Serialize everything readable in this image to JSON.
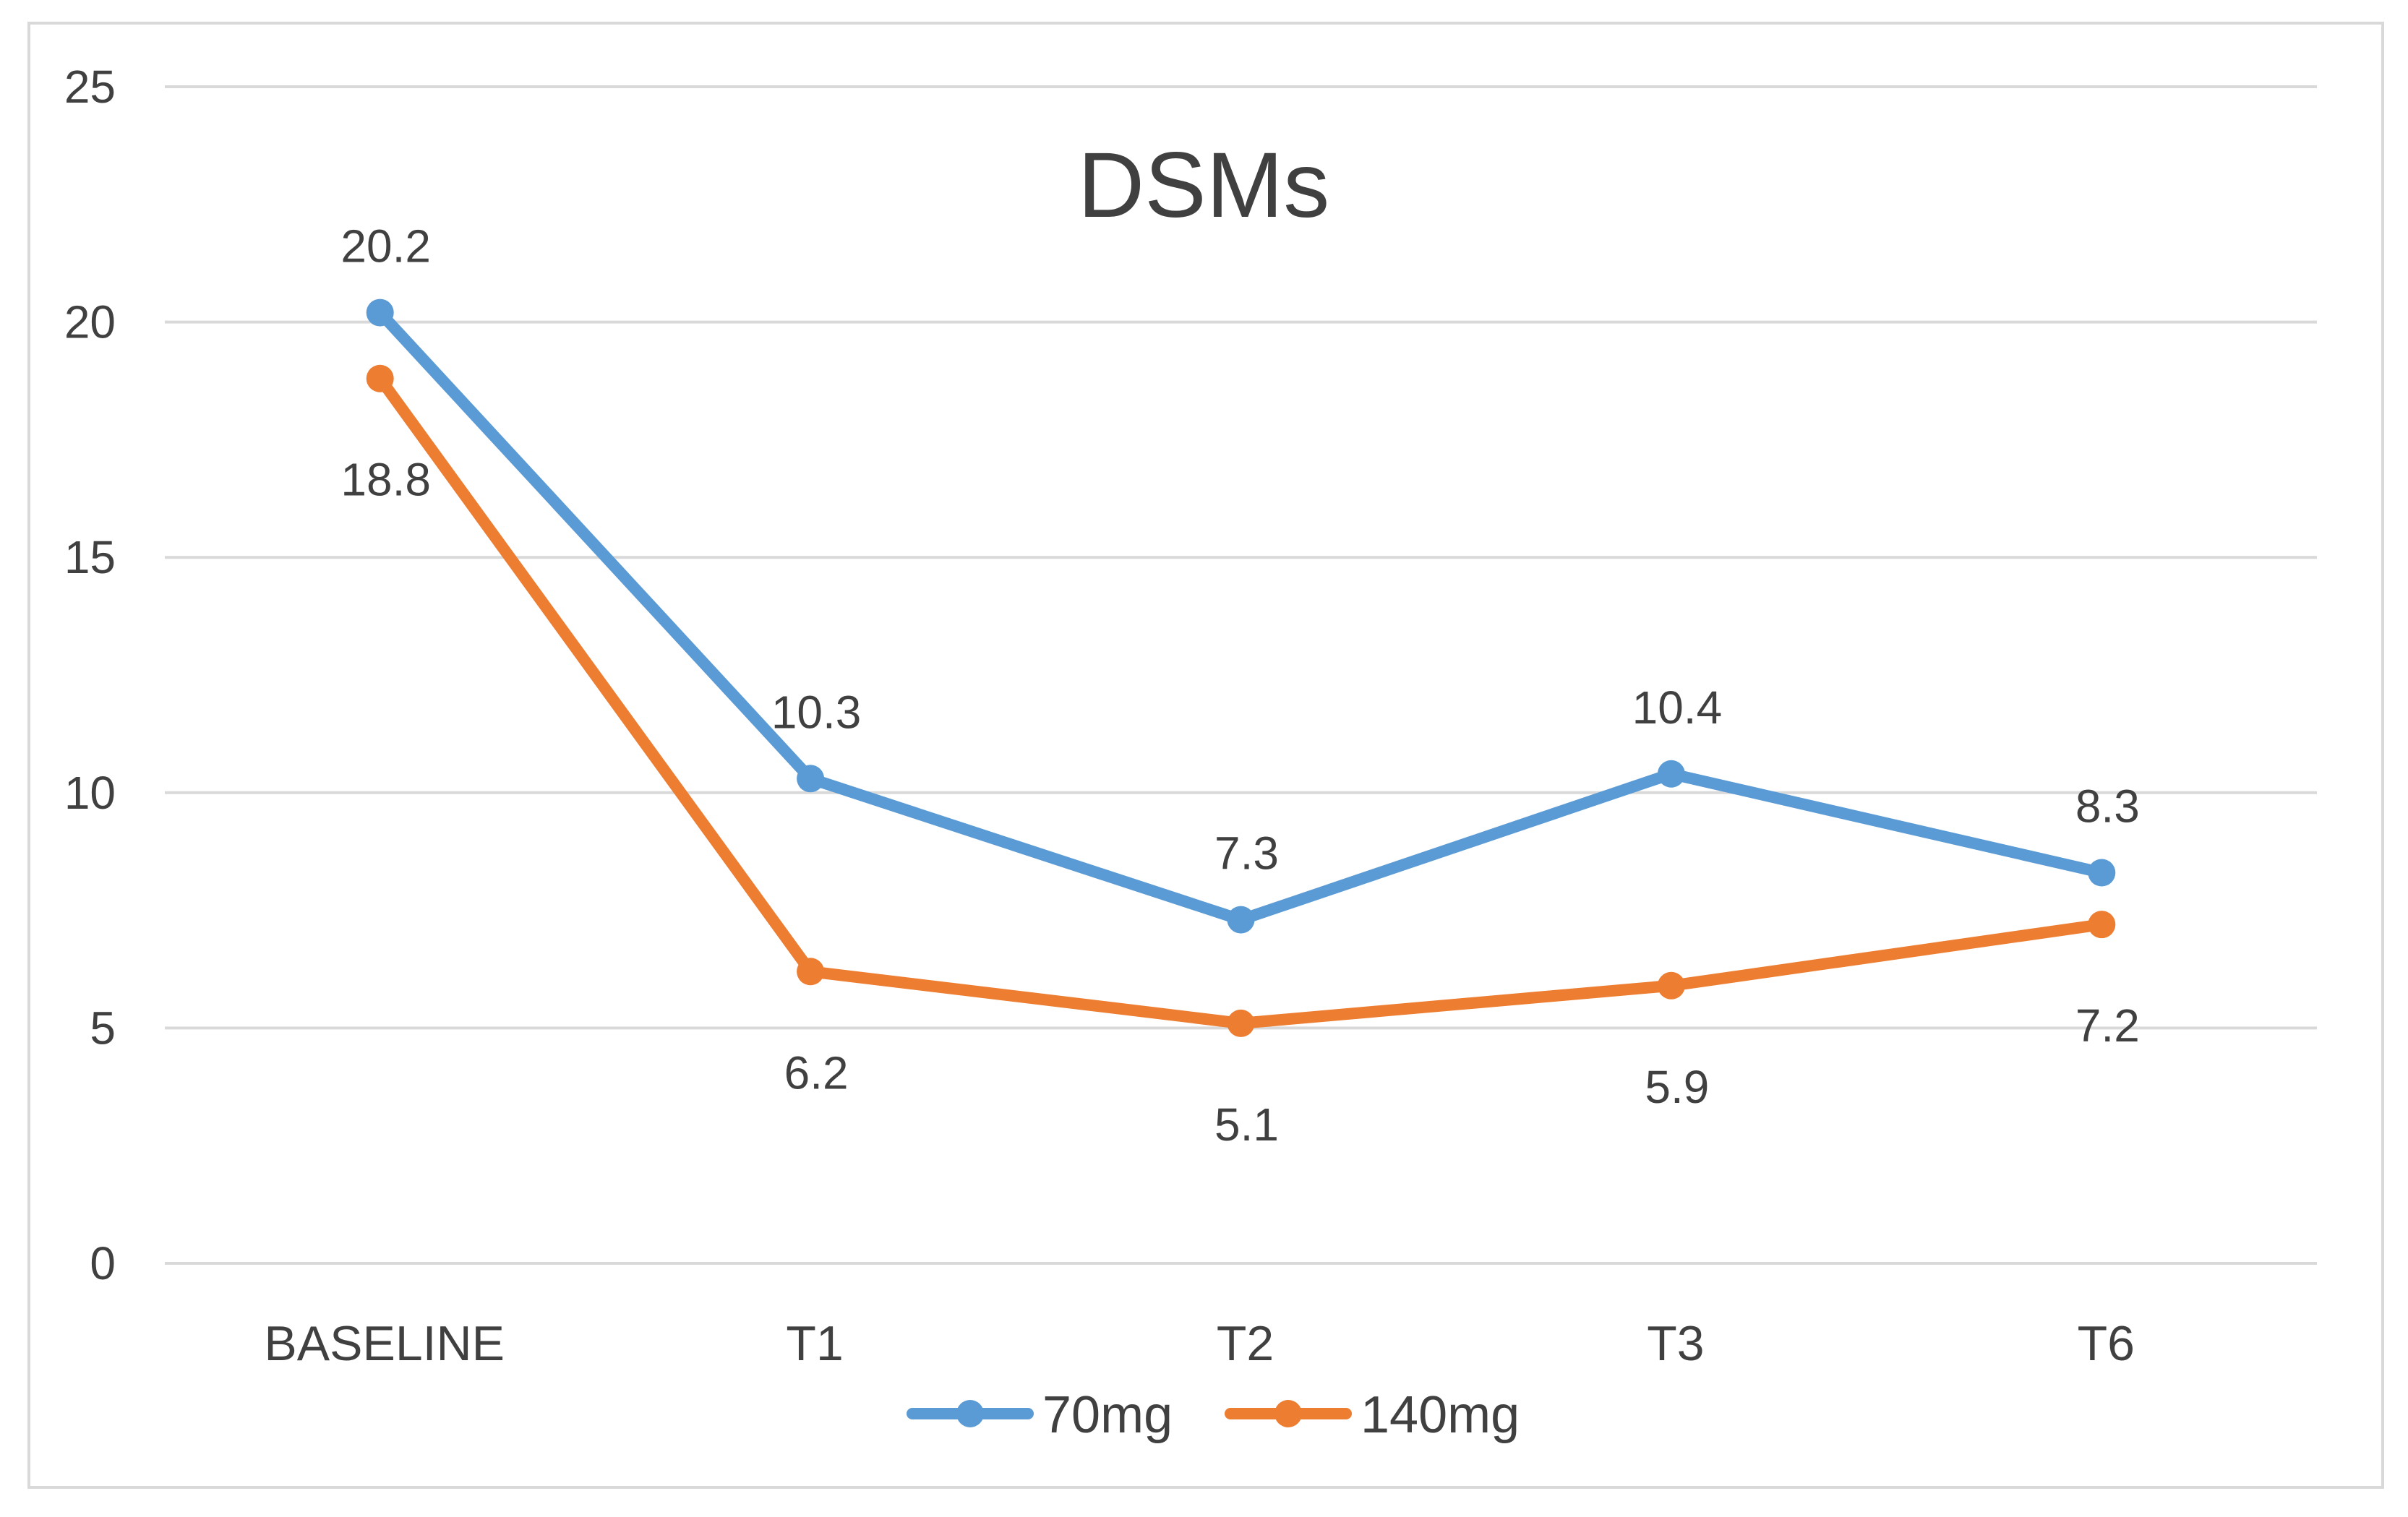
{
  "chart_data": {
    "type": "line",
    "title": "DSMs",
    "xlabel": "",
    "ylabel": "",
    "categories": [
      "BASELINE",
      "T1",
      "T2",
      "T3",
      "T6"
    ],
    "ylim": [
      0,
      25
    ],
    "yticks": [
      0,
      5,
      10,
      15,
      20,
      25
    ],
    "grid": true,
    "legend": "bottom-center",
    "series": [
      {
        "name": "70mg",
        "color": "#5b9bd5",
        "values": [
          20.2,
          10.3,
          7.3,
          10.4,
          8.3
        ],
        "labels": [
          "20.2",
          "10.3",
          "7.3",
          "10.4",
          "8.3"
        ],
        "label_position": "above"
      },
      {
        "name": "140mg",
        "color": "#ed7d31",
        "values": [
          18.8,
          6.2,
          5.1,
          5.9,
          7.2
        ],
        "labels": [
          "18.8",
          "6.2",
          "5.1",
          "5.9",
          "7.2"
        ],
        "label_position": "below"
      }
    ]
  }
}
